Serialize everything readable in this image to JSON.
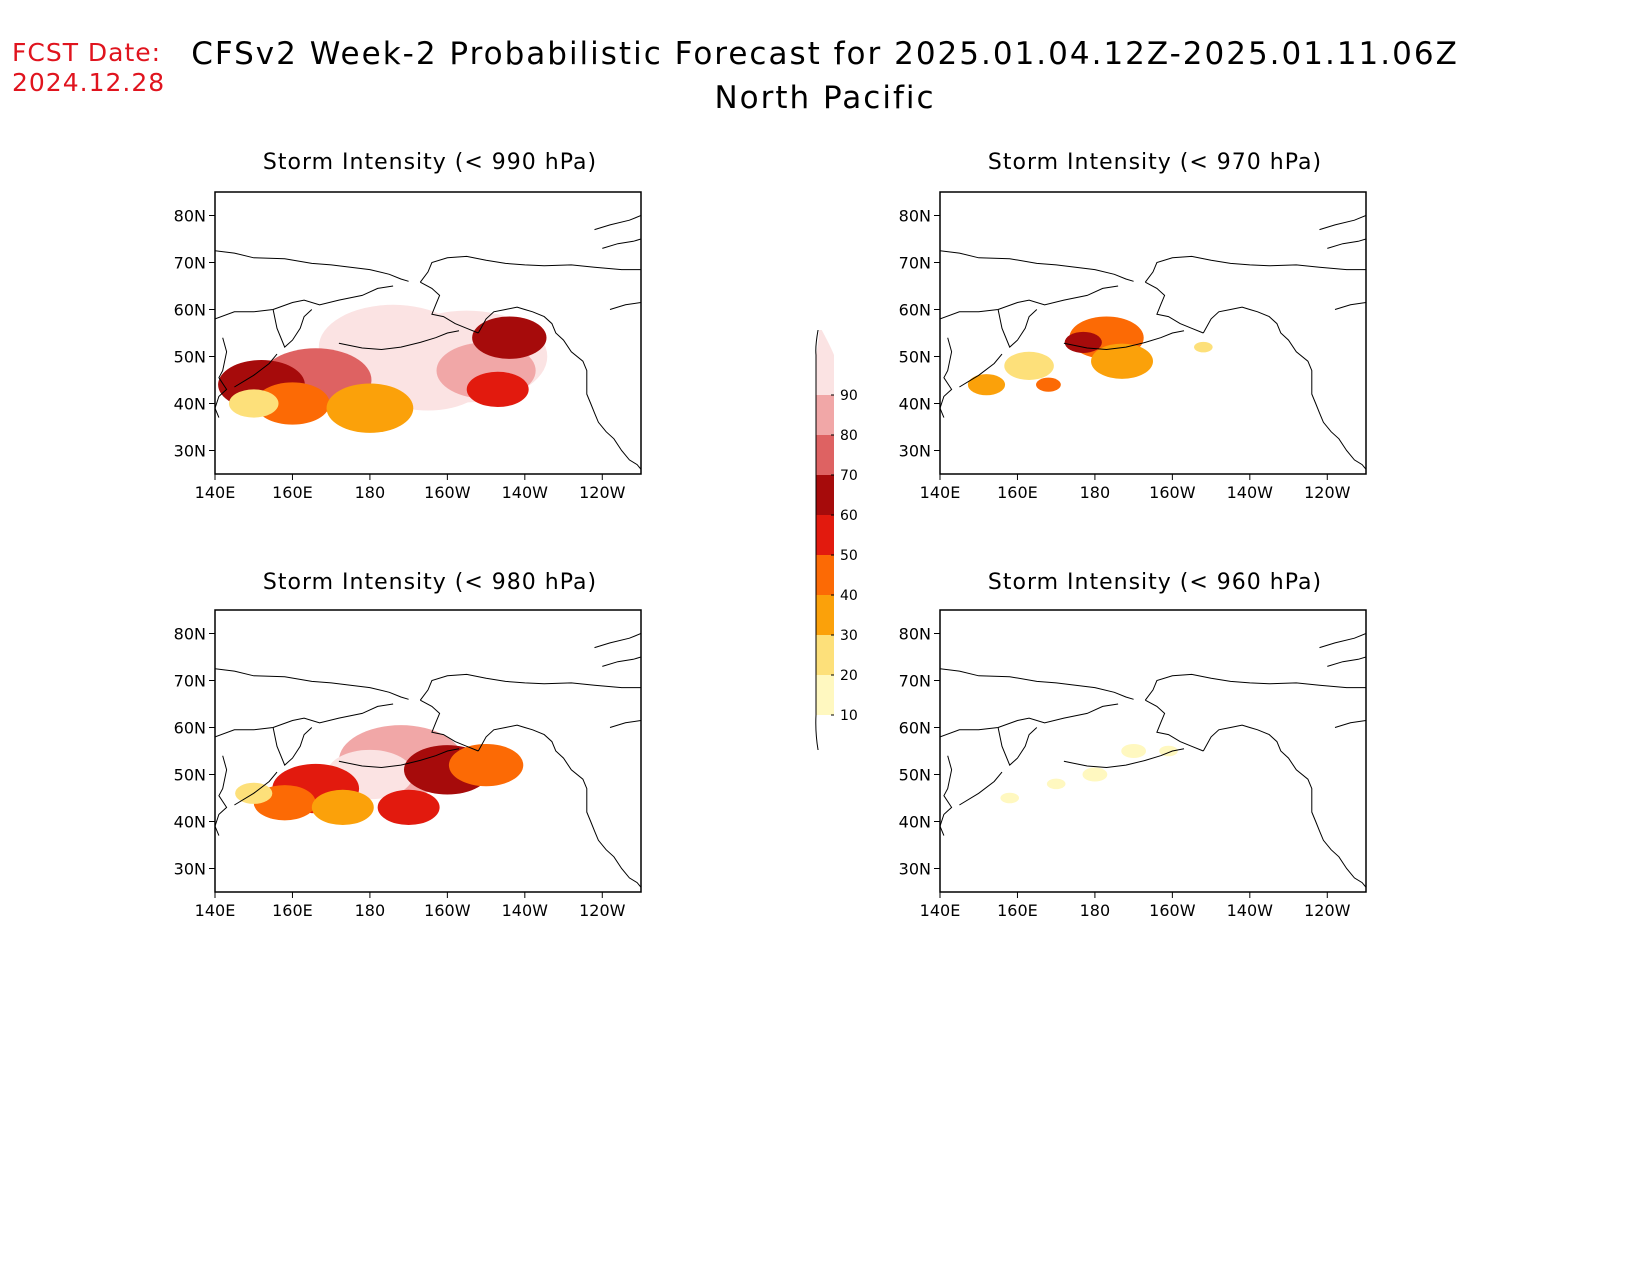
{
  "fcst_label": "FCST Date:",
  "fcst_date": "2024.12.28",
  "title_line1": "CFSv2 Week-2 Probabilistic Forecast for 2025.01.04.12Z-2025.01.11.06Z",
  "title_line2": "North Pacific",
  "colors": {
    "10": "#fff8c0",
    "20": "#fde07a",
    "30": "#fba10a",
    "40": "#fc6a05",
    "50": "#e21a0e",
    "60": "#a60b0b",
    "70": "#de6262",
    "80": "#f1a7a7",
    "90": "#fbe3e3"
  },
  "colorbar": {
    "levels": [
      "10",
      "20",
      "30",
      "40",
      "50",
      "60",
      "70",
      "80",
      "90"
    ]
  },
  "map_axes": {
    "lat_ticks": [
      "30N",
      "40N",
      "50N",
      "60N",
      "70N",
      "80N"
    ],
    "lon_ticks": [
      "140E",
      "160E",
      "180",
      "160W",
      "140W",
      "120W"
    ]
  },
  "panels": [
    {
      "id": "p990",
      "title": "Storm Intensity (< 990 hPa)"
    },
    {
      "id": "p970",
      "title": "Storm Intensity (< 970 hPa)"
    },
    {
      "id": "p980",
      "title": "Storm Intensity (< 980 hPa)"
    },
    {
      "id": "p960",
      "title": "Storm Intensity (< 960 hPa)"
    }
  ],
  "map_data": {
    "p990": [
      {
        "lon": 205,
        "lat": 50,
        "r": 13,
        "level": "90"
      },
      {
        "lon": 186,
        "lat": 52,
        "r": 12,
        "level": "90"
      },
      {
        "lon": 195,
        "lat": 46,
        "r": 10,
        "level": "90"
      },
      {
        "lon": 175,
        "lat": 46,
        "r": 8,
        "level": "90"
      },
      {
        "lon": 210,
        "lat": 47,
        "r": 8,
        "level": "80"
      },
      {
        "lon": 166,
        "lat": 45,
        "r": 9,
        "level": "70"
      },
      {
        "lon": 152,
        "lat": 44,
        "r": 7,
        "level": "60"
      },
      {
        "lon": 216,
        "lat": 54,
        "r": 6,
        "level": "60"
      },
      {
        "lon": 160,
        "lat": 40,
        "r": 6,
        "level": "40"
      },
      {
        "lon": 180,
        "lat": 39,
        "r": 7,
        "level": "30"
      },
      {
        "lon": 213,
        "lat": 43,
        "r": 5,
        "level": "50"
      },
      {
        "lon": 150,
        "lat": 40,
        "r": 4,
        "level": "20"
      }
    ],
    "p970": [
      {
        "lon": 183,
        "lat": 54,
        "r": 6,
        "level": "40"
      },
      {
        "lon": 187,
        "lat": 49,
        "r": 5,
        "level": "30"
      },
      {
        "lon": 177,
        "lat": 53,
        "r": 3,
        "level": "60"
      },
      {
        "lon": 163,
        "lat": 48,
        "r": 4,
        "level": "20"
      },
      {
        "lon": 152,
        "lat": 44,
        "r": 3,
        "level": "30"
      },
      {
        "lon": 168,
        "lat": 44,
        "r": 2,
        "level": "40"
      },
      {
        "lon": 208,
        "lat": 52,
        "r": 1.5,
        "level": "20"
      }
    ],
    "p980": [
      {
        "lon": 188,
        "lat": 53,
        "r": 10,
        "level": "80"
      },
      {
        "lon": 180,
        "lat": 50,
        "r": 7,
        "level": "90"
      },
      {
        "lon": 166,
        "lat": 47,
        "r": 7,
        "level": "50"
      },
      {
        "lon": 200,
        "lat": 51,
        "r": 7,
        "level": "60"
      },
      {
        "lon": 210,
        "lat": 52,
        "r": 6,
        "level": "40"
      },
      {
        "lon": 158,
        "lat": 44,
        "r": 5,
        "level": "40"
      },
      {
        "lon": 173,
        "lat": 43,
        "r": 5,
        "level": "30"
      },
      {
        "lon": 150,
        "lat": 46,
        "r": 3,
        "level": "20"
      },
      {
        "lon": 190,
        "lat": 43,
        "r": 5,
        "level": "50"
      }
    ],
    "p960": [
      {
        "lon": 158,
        "lat": 45,
        "r": 1.5,
        "level": "10"
      },
      {
        "lon": 170,
        "lat": 48,
        "r": 1.5,
        "level": "10"
      },
      {
        "lon": 180,
        "lat": 50,
        "r": 2,
        "level": "10"
      },
      {
        "lon": 190,
        "lat": 55,
        "r": 2,
        "level": "10"
      },
      {
        "lon": 199,
        "lat": 55,
        "r": 1.5,
        "level": "10"
      }
    ]
  }
}
